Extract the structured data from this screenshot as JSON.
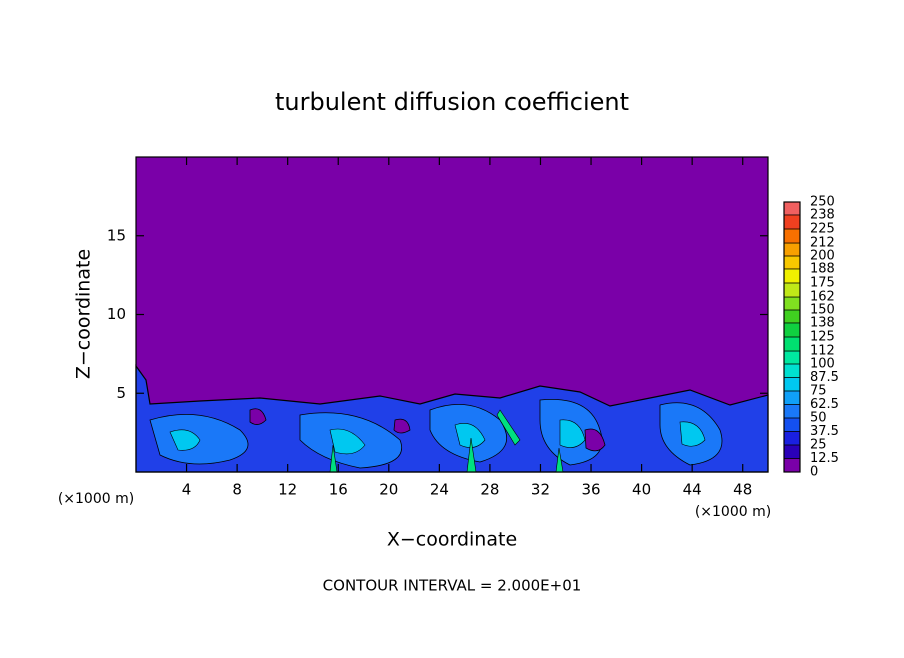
{
  "chart_data": {
    "type": "contour",
    "title": "turbulent diffusion coefficient",
    "x_label": "X−coordinate",
    "y_label": "Z−coordinate",
    "x_unit": "(×1000 m)",
    "annotation": "CONTOUR INTERVAL = 2.000E+01",
    "xlim": [
      0,
      50
    ],
    "xticks": [
      4,
      8,
      12,
      16,
      20,
      24,
      28,
      32,
      36,
      40,
      44,
      48
    ],
    "ylim": [
      0,
      20
    ],
    "yticks": [
      5,
      10,
      15
    ],
    "colorbar": {
      "lim": [
        0,
        250
      ],
      "ticks": [
        0,
        12.5,
        25,
        37.5,
        50,
        62.5,
        75,
        87.5,
        100,
        112,
        125,
        138,
        150,
        162,
        175,
        188,
        200,
        212,
        225,
        238,
        250
      ],
      "colors": [
        "#7a00a8",
        "#2a00b8",
        "#1a20e0",
        "#1450f0",
        "#1a78f8",
        "#10a0f8",
        "#00c8f0",
        "#00e0d0",
        "#00e8a0",
        "#00e070",
        "#10d040",
        "#40d020",
        "#80e020",
        "#c0e818",
        "#f0f000",
        "#f8c800",
        "#f8a000",
        "#f87000",
        "#f04020",
        "#f06060"
      ]
    }
  }
}
